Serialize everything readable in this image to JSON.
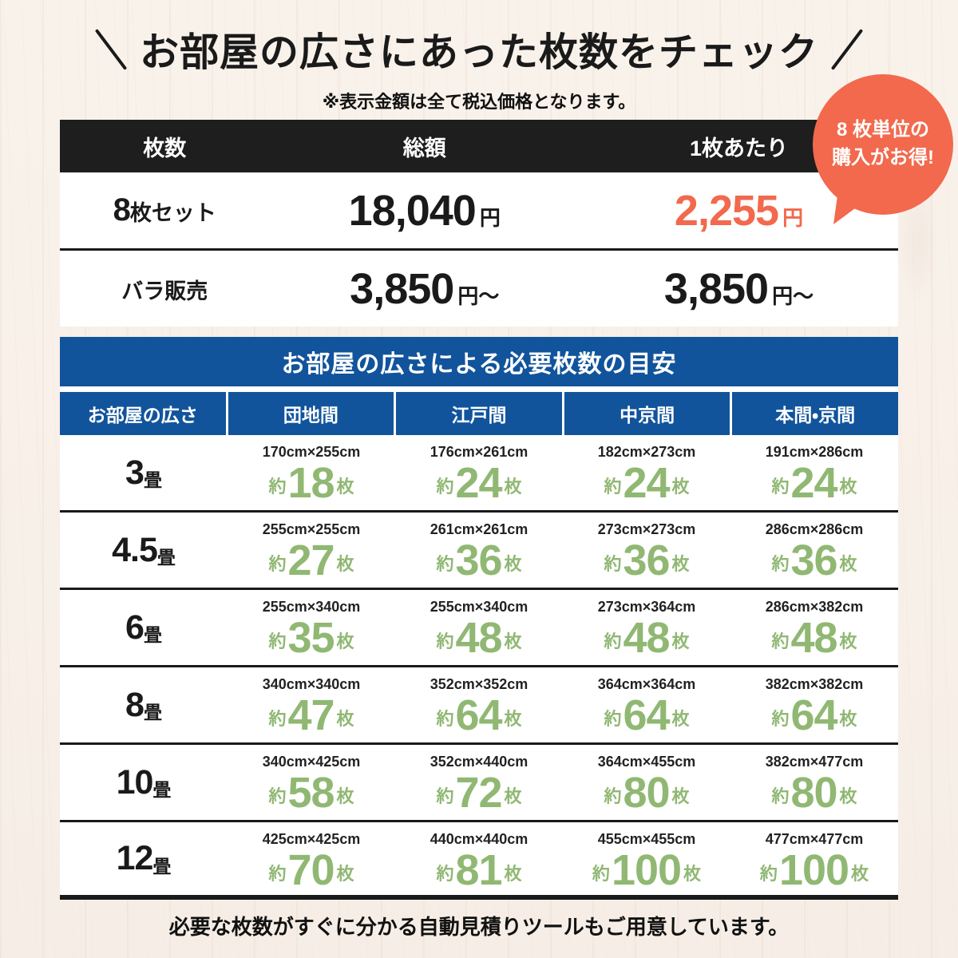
{
  "header": {
    "title": "お部屋の広さにあった枚数をチェック",
    "note": "※表示金額は全て税込価格となります。"
  },
  "badge": {
    "line1": "8 枚単位の",
    "line2": "購入がお得!"
  },
  "price_table": {
    "columns": [
      "枚数",
      "総額",
      "1枚あたり"
    ],
    "rows": [
      {
        "label_big": "8",
        "label": "枚セット",
        "total": "18,040",
        "total_unit": "円",
        "per": "2,255",
        "per_unit": "円"
      },
      {
        "label_big": "",
        "label": "バラ販売",
        "total": "3,850",
        "total_unit": "円〜",
        "per": "3,850",
        "per_unit": "円〜"
      }
    ]
  },
  "size_table": {
    "title": "お部屋の広さによる必要枚数の目安",
    "columns": [
      "お部屋の広さ",
      "団地間",
      "江戸間",
      "中京間",
      "本間・京間"
    ],
    "approx": "約",
    "unit": "枚",
    "tatami": "畳",
    "rows": [
      {
        "size": "3",
        "cells": [
          {
            "dim": "170cm×255cm",
            "count": "18"
          },
          {
            "dim": "176cm×261cm",
            "count": "24"
          },
          {
            "dim": "182cm×273cm",
            "count": "24"
          },
          {
            "dim": "191cm×286cm",
            "count": "24"
          }
        ]
      },
      {
        "size": "4.5",
        "cells": [
          {
            "dim": "255cm×255cm",
            "count": "27"
          },
          {
            "dim": "261cm×261cm",
            "count": "36"
          },
          {
            "dim": "273cm×273cm",
            "count": "36"
          },
          {
            "dim": "286cm×286cm",
            "count": "36"
          }
        ]
      },
      {
        "size": "6",
        "cells": [
          {
            "dim": "255cm×340cm",
            "count": "35"
          },
          {
            "dim": "255cm×340cm",
            "count": "48"
          },
          {
            "dim": "273cm×364cm",
            "count": "48"
          },
          {
            "dim": "286cm×382cm",
            "count": "48"
          }
        ]
      },
      {
        "size": "8",
        "cells": [
          {
            "dim": "340cm×340cm",
            "count": "47"
          },
          {
            "dim": "352cm×352cm",
            "count": "64"
          },
          {
            "dim": "364cm×364cm",
            "count": "64"
          },
          {
            "dim": "382cm×382cm",
            "count": "64"
          }
        ]
      },
      {
        "size": "10",
        "cells": [
          {
            "dim": "340cm×425cm",
            "count": "58"
          },
          {
            "dim": "352cm×440cm",
            "count": "72"
          },
          {
            "dim": "364cm×455cm",
            "count": "80"
          },
          {
            "dim": "382cm×477cm",
            "count": "80"
          }
        ]
      },
      {
        "size": "12",
        "cells": [
          {
            "dim": "425cm×425cm",
            "count": "70"
          },
          {
            "dim": "440cm×440cm",
            "count": "81"
          },
          {
            "dim": "455cm×455cm",
            "count": "100"
          },
          {
            "dim": "477cm×477cm",
            "count": "100"
          }
        ]
      }
    ]
  },
  "footer": "必要な枚数がすぐに分かる自動見積りツールもご用意しています。",
  "colors": {
    "accent_orange": "#f2694d",
    "table_blue": "#11549c",
    "count_green": "#90b873",
    "bar_black": "#1e1e1e"
  }
}
